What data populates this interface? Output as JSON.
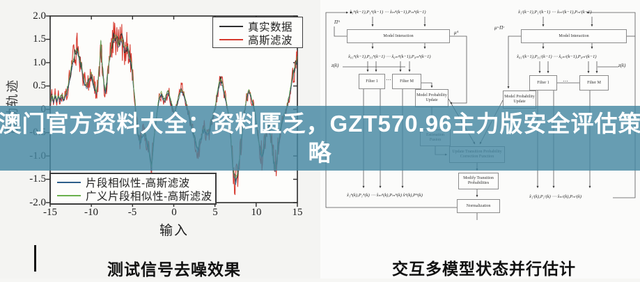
{
  "banner": {
    "line1": "澳门官方资料大全：资料匮乏，GZT570.96主力版安全评估策",
    "line2": "略",
    "bg_color": "#45879f",
    "text_color": "#ffffff"
  },
  "left_chart": {
    "caption": "测试信号去噪效果",
    "xlabel": "输入",
    "ylabel": "震动轨迹",
    "x_ticks": [
      "-15",
      "-10",
      "-5",
      "0",
      "5",
      "10",
      "15"
    ],
    "y_ticks": [
      "2.0",
      "1.5",
      "1.0",
      "0.5",
      "0",
      "-0.5",
      "-1.0",
      "-1.5",
      "-2.0"
    ],
    "legend_top": [
      {
        "label": "真实数据",
        "color": "#2f2f2f"
      },
      {
        "label": "高斯滤波",
        "color": "#d6392e"
      }
    ],
    "legend_bottom": [
      {
        "label": "片段相似性-高斯滤波",
        "color": "#2e5f8a"
      },
      {
        "label": "广义片段相似性-高斯滤波",
        "color": "#6ab04c"
      }
    ]
  },
  "chart_data": {
    "type": "line",
    "title": "测试信号去噪效果",
    "xlabel": "输入",
    "ylabel": "震动轨迹",
    "xlim": [
      -15,
      15
    ],
    "ylim": [
      -2,
      2
    ],
    "grid": false,
    "legend_positions": [
      "top-right",
      "bottom-left"
    ],
    "noise_amplitude": 0.22,
    "series": [
      {
        "name": "真实数据",
        "color": "#2f2f2f",
        "points": [
          [
            -15,
            0.1
          ],
          [
            -14.8,
            0.3
          ],
          [
            -14.6,
            0.15
          ],
          [
            -14.4,
            0.3
          ],
          [
            -14.2,
            0.18
          ],
          [
            -14,
            0.28
          ],
          [
            -13.8,
            0.2
          ],
          [
            -13.6,
            0.3
          ],
          [
            -13.4,
            0.22
          ],
          [
            -13.2,
            0.28
          ],
          [
            -13,
            0.35
          ],
          [
            -12.8,
            0.5
          ],
          [
            -12.6,
            0.7
          ],
          [
            -12.4,
            0.9
          ],
          [
            -12.2,
            1.05
          ],
          [
            -12,
            1.2
          ],
          [
            -11.8,
            1.3
          ],
          [
            -11.6,
            1.22
          ],
          [
            -11.4,
            1.05
          ],
          [
            -11.2,
            0.9
          ],
          [
            -11,
            0.72
          ],
          [
            -10.8,
            0.58
          ],
          [
            -10.6,
            0.45
          ],
          [
            -10.4,
            0.55
          ],
          [
            -10.2,
            0.68
          ],
          [
            -10,
            0.78
          ],
          [
            -9.8,
            0.62
          ],
          [
            -9.6,
            0.45
          ],
          [
            -9.4,
            0.35
          ],
          [
            -9.2,
            0.55
          ],
          [
            -9,
            0.95
          ],
          [
            -8.85,
            1.45
          ],
          [
            -8.7,
            1.05
          ],
          [
            -8.5,
            0.55
          ],
          [
            -8.3,
            0.38
          ],
          [
            -8.1,
            0.6
          ],
          [
            -7.9,
            0.92
          ],
          [
            -7.7,
            1.2
          ],
          [
            -7.5,
            1.42
          ],
          [
            -7.3,
            1.52
          ],
          [
            -7.1,
            1.58
          ],
          [
            -6.9,
            1.48
          ],
          [
            -6.7,
            1.38
          ],
          [
            -6.5,
            1.45
          ],
          [
            -6.3,
            1.5
          ],
          [
            -6.1,
            1.35
          ],
          [
            -5.9,
            1.28
          ],
          [
            -5.7,
            1.33
          ],
          [
            -5.5,
            1.22
          ],
          [
            -5.3,
            1.08
          ],
          [
            -5.1,
            0.95
          ],
          [
            -4.9,
            0.55
          ],
          [
            -4.7,
            0.15
          ],
          [
            -4.5,
            -0.25
          ],
          [
            -4.3,
            -0.55
          ],
          [
            -4.1,
            -0.7
          ],
          [
            -3.9,
            -0.6
          ],
          [
            -3.7,
            -0.5
          ],
          [
            -3.5,
            -0.58
          ],
          [
            -3.3,
            -0.65
          ],
          [
            -3.1,
            -0.8
          ],
          [
            -2.9,
            -1.05
          ],
          [
            -2.7,
            -1.25
          ],
          [
            -2.5,
            -0.85
          ],
          [
            -2.3,
            -0.45
          ],
          [
            -2.1,
            -0.15
          ],
          [
            -1.9,
            0.1
          ],
          [
            -1.7,
            0.28
          ],
          [
            -1.5,
            0.35
          ],
          [
            -1.3,
            0.25
          ],
          [
            -1.1,
            0.18
          ],
          [
            -0.9,
            0.28
          ],
          [
            -0.7,
            0.38
          ],
          [
            -0.5,
            0.28
          ],
          [
            -0.3,
            0.12
          ],
          [
            -0.1,
            0
          ],
          [
            0.1,
            -0.1
          ],
          [
            0.3,
            0.05
          ],
          [
            0.5,
            0.2
          ],
          [
            0.7,
            0.32
          ],
          [
            0.9,
            0.42
          ],
          [
            1.1,
            0.38
          ],
          [
            1.3,
            0.28
          ],
          [
            1.5,
            0.12
          ],
          [
            1.7,
            -0.02
          ],
          [
            1.9,
            -0.18
          ],
          [
            2.1,
            -0.32
          ],
          [
            2.3,
            -0.48
          ],
          [
            2.5,
            -0.62
          ],
          [
            2.7,
            -0.75
          ],
          [
            2.9,
            -0.85
          ],
          [
            3.1,
            -0.78
          ],
          [
            3.3,
            -0.62
          ],
          [
            3.5,
            -0.5
          ],
          [
            3.7,
            -0.42
          ],
          [
            3.9,
            -0.48
          ],
          [
            4.1,
            -0.55
          ],
          [
            4.3,
            -0.48
          ],
          [
            4.5,
            -0.32
          ],
          [
            4.7,
            -0.18
          ],
          [
            4.9,
            -0.05
          ],
          [
            5.1,
            0.12
          ],
          [
            5.3,
            0.35
          ],
          [
            5.5,
            0.52
          ],
          [
            5.7,
            0.62
          ],
          [
            5.9,
            0.52
          ],
          [
            6.1,
            0.38
          ],
          [
            6.3,
            0.22
          ],
          [
            6.5,
            0.05
          ],
          [
            6.7,
            -0.15
          ],
          [
            6.9,
            -0.55
          ],
          [
            7.1,
            -1.05
          ],
          [
            7.3,
            -1.4
          ],
          [
            7.5,
            -1.55
          ],
          [
            7.7,
            -1.42
          ],
          [
            7.9,
            -1.15
          ],
          [
            8.1,
            -0.85
          ],
          [
            8.3,
            -0.5
          ],
          [
            8.5,
            -0.18
          ],
          [
            8.7,
            0.08
          ],
          [
            8.9,
            0.28
          ],
          [
            9.1,
            0.42
          ],
          [
            9.3,
            0.32
          ],
          [
            9.5,
            0.18
          ],
          [
            9.7,
            0.05
          ],
          [
            9.9,
            -0.12
          ],
          [
            10.1,
            -0.4
          ],
          [
            10.3,
            -0.68
          ],
          [
            10.5,
            -0.9
          ],
          [
            10.7,
            -1
          ],
          [
            10.9,
            -0.85
          ],
          [
            11.1,
            -0.62
          ],
          [
            11.3,
            -0.42
          ],
          [
            11.5,
            -0.32
          ],
          [
            11.7,
            -0.5
          ],
          [
            11.9,
            -0.78
          ],
          [
            12.1,
            -1.08
          ],
          [
            12.3,
            -1.3
          ],
          [
            12.5,
            -1.08
          ],
          [
            12.7,
            -0.78
          ],
          [
            12.9,
            -0.5
          ],
          [
            13.1,
            -0.3
          ],
          [
            13.3,
            -0.18
          ],
          [
            13.5,
            -0.08
          ],
          [
            13.7,
            0.02
          ],
          [
            13.9,
            0.18
          ],
          [
            14.1,
            0.38
          ],
          [
            14.3,
            0.58
          ],
          [
            14.5,
            0.75
          ],
          [
            14.7,
            0.92
          ],
          [
            14.9,
            1.05
          ],
          [
            15,
            1.1
          ]
        ]
      },
      {
        "name": "高斯滤波",
        "color": "#d6392e",
        "derived": "真实数据 + noise"
      },
      {
        "name": "片段相似性-高斯滤波",
        "color": "#2e5f8a",
        "derived": "真实数据 smooth"
      },
      {
        "name": "广义片段相似性-高斯滤波",
        "color": "#6ab04c",
        "derived": "真实数据 smooth"
      }
    ]
  },
  "flowchart": {
    "caption": "交互多模型状态并行估计",
    "boxes": {
      "model_interaction": "Model Interaction",
      "filter_1": "Filter 1",
      "filter_m": "Filter M",
      "model_prob_update": "Model Probability Update",
      "estimation_fusion": "Estimation Fusion",
      "update_transition": "Update Transition Probability Correction Function",
      "modify_transition": "Modify Transition Probabilities",
      "normalization": "Normalization"
    },
    "labels": {
      "dots": "⋯",
      "z_k": "z(k)",
      "pi_a": "Πᴬ",
      "mu_a": "μᴬ",
      "mu_pi_c": "μᶜ·Πᶜ",
      "expr_top_a": "x̂₁ᴬ(k−1),P₁ᴬ(k−1) ⋯ x̂ₘᴬ(k−1),Pₘᴬ(k−1)",
      "expr_mid_a": "x̂₀₁ᴬ(k−1),P₀₁ᴬ(k−1) ⋯ x̂₀ₘᴬ(k−1),P₀ₘᴬ(k−1)",
      "expr_bot_a": "x̂₁ᴬ(k),P₁ᴬ(k) ⋯ x̂ₘᴬ(k),Pₘᴬ(k)  x̂ᴬ(k),Pᴬ(k)",
      "expr_top_c": "x̂₁ᶜ(k−1),P₁ᶜ(k−1) ⋯ x̂ₘᶜ(k−1),Pₘᶜ(k−1)",
      "expr_mid_c": "x̂₀₁ᶜ(k−1),P₀₁ᶜ(k−1) ⋯ x̂₀ₘᶜ(k−1),P₀ₘᶜ(k−1)",
      "expr_bot_c": "x̂₁ᶜ(k),P₁ᶜ(k) ⋯ x̂ₘᶜ(k),Pₘᶜ(k)"
    }
  }
}
